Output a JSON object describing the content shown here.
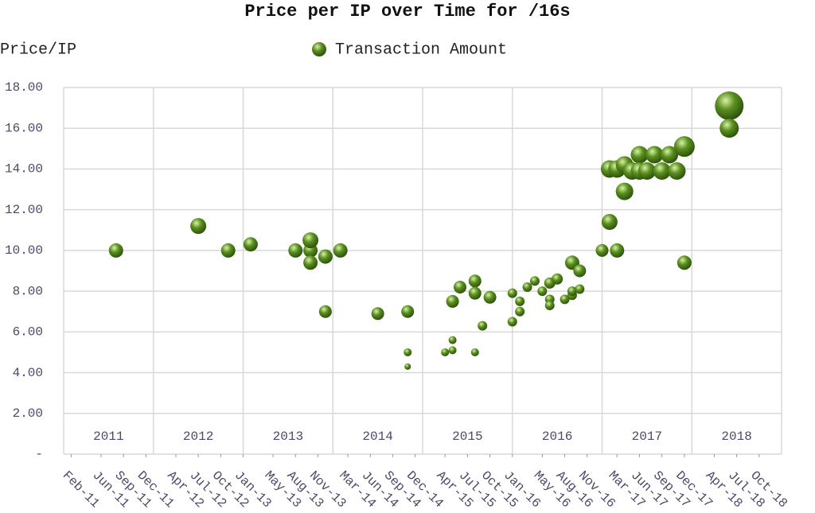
{
  "chart_data": {
    "type": "scatter",
    "title": "Price per IP over Time for /16s",
    "ylabel": "Price/IP",
    "xlim": [
      "2011-01",
      "2019-01"
    ],
    "ylim": [
      0,
      18
    ],
    "yticks": [
      {
        "value": 0,
        "label": "-"
      },
      {
        "value": 2,
        "label": "2.00"
      },
      {
        "value": 4,
        "label": "4.00"
      },
      {
        "value": 6,
        "label": "6.00"
      },
      {
        "value": 8,
        "label": "8.00"
      },
      {
        "value": 10,
        "label": "10.00"
      },
      {
        "value": 12,
        "label": "12.00"
      },
      {
        "value": 14,
        "label": "14.00"
      },
      {
        "value": 16,
        "label": "16.00"
      },
      {
        "value": 18,
        "label": "18.00"
      }
    ],
    "xticks": [
      {
        "value": "2011-02",
        "label": "Feb-11"
      },
      {
        "value": "2011-06",
        "label": "Jun-11"
      },
      {
        "value": "2011-09",
        "label": "Sep-11"
      },
      {
        "value": "2011-12",
        "label": "Dec-11"
      },
      {
        "value": "2012-04",
        "label": "Apr-12"
      },
      {
        "value": "2012-07",
        "label": "Jul-12"
      },
      {
        "value": "2012-10",
        "label": "Oct-12"
      },
      {
        "value": "2013-01",
        "label": "Jan-13"
      },
      {
        "value": "2013-05",
        "label": "May-13"
      },
      {
        "value": "2013-08",
        "label": "Aug-13"
      },
      {
        "value": "2013-11",
        "label": "Nov-13"
      },
      {
        "value": "2014-03",
        "label": "Mar-14"
      },
      {
        "value": "2014-06",
        "label": "Jun-14"
      },
      {
        "value": "2014-09",
        "label": "Sep-14"
      },
      {
        "value": "2014-12",
        "label": "Dec-14"
      },
      {
        "value": "2015-04",
        "label": "Apr-15"
      },
      {
        "value": "2015-07",
        "label": "Jul-15"
      },
      {
        "value": "2015-10",
        "label": "Oct-15"
      },
      {
        "value": "2016-01",
        "label": "Jan-16"
      },
      {
        "value": "2016-05",
        "label": "May-16"
      },
      {
        "value": "2016-08",
        "label": "Aug-16"
      },
      {
        "value": "2016-11",
        "label": "Nov-16"
      },
      {
        "value": "2017-03",
        "label": "Mar-17"
      },
      {
        "value": "2017-06",
        "label": "Jun-17"
      },
      {
        "value": "2017-09",
        "label": "Sep-17"
      },
      {
        "value": "2017-12",
        "label": "Dec-17"
      },
      {
        "value": "2018-04",
        "label": "Apr-18"
      },
      {
        "value": "2018-07",
        "label": "Jul-18"
      },
      {
        "value": "2018-10",
        "label": "Oct-18"
      }
    ],
    "year_bands": [
      "2011",
      "2012",
      "2013",
      "2014",
      "2015",
      "2016",
      "2017",
      "2018"
    ],
    "grid": true,
    "legend": "top",
    "series": [
      {
        "name": "Transaction Amount",
        "color": "#5a8f1f",
        "x": [
          "2011-08",
          "2012-07",
          "2012-11",
          "2013-02",
          "2013-08",
          "2013-10",
          "2013-10",
          "2013-10",
          "2013-12",
          "2014-02",
          "2013-12",
          "2014-07",
          "2014-11",
          "2014-11",
          "2014-11",
          "2015-04",
          "2015-05",
          "2015-05",
          "2015-05",
          "2015-06",
          "2015-08",
          "2015-08",
          "2015-08",
          "2015-09",
          "2015-10",
          "2016-01",
          "2016-01",
          "2016-02",
          "2016-02",
          "2016-03",
          "2016-04",
          "2016-05",
          "2016-06",
          "2016-06",
          "2016-06",
          "2016-07",
          "2016-08",
          "2016-09",
          "2016-09",
          "2016-10",
          "2016-09",
          "2016-10",
          "2017-01",
          "2017-03",
          "2017-02",
          "2017-02",
          "2017-03",
          "2017-04",
          "2017-04",
          "2017-05",
          "2017-06",
          "2017-06",
          "2017-07",
          "2017-08",
          "2017-09",
          "2017-10",
          "2017-11",
          "2017-12",
          "2017-12",
          "2018-06",
          "2018-06"
        ],
        "values": [
          10.0,
          11.2,
          10.0,
          10.3,
          10.0,
          10.0,
          10.5,
          9.4,
          9.7,
          10.0,
          7.0,
          6.9,
          7.0,
          5.0,
          4.3,
          5.0,
          5.1,
          5.6,
          7.5,
          8.2,
          8.5,
          7.9,
          5.0,
          6.3,
          7.7,
          6.5,
          7.9,
          7.0,
          7.5,
          8.2,
          8.5,
          8.0,
          7.6,
          7.3,
          8.4,
          8.6,
          7.6,
          7.8,
          8.0,
          8.1,
          9.4,
          9.0,
          10.0,
          10.0,
          11.4,
          14.0,
          14.0,
          12.9,
          14.2,
          13.9,
          14.7,
          13.9,
          13.9,
          14.7,
          13.9,
          14.7,
          13.9,
          9.4,
          15.1,
          17.1,
          16.0
        ],
        "sizes": [
          8.1,
          10,
          8.1,
          8.1,
          8.1,
          8.1,
          10,
          8.1,
          8.1,
          8.1,
          6.4,
          6.4,
          6.4,
          2.5,
          1.6,
          2.5,
          2.5,
          2.5,
          6.4,
          6.4,
          6.4,
          6.4,
          2.5,
          3.6,
          6.4,
          3.6,
          3.6,
          3.6,
          3.6,
          3.6,
          3.6,
          3.6,
          3.6,
          3.6,
          4.9,
          4.9,
          3.6,
          3.6,
          3.6,
          3.6,
          8.1,
          6.4,
          6.4,
          8.1,
          10,
          12.1,
          12.1,
          12.1,
          12.1,
          12.1,
          12.1,
          12.1,
          12.1,
          12.1,
          12.1,
          12.1,
          12.1,
          8.1,
          16.9,
          32.4,
          14.4
        ]
      }
    ]
  }
}
